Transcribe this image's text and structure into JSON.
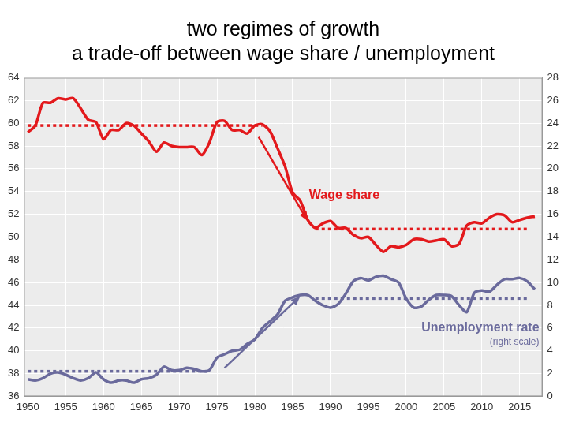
{
  "chart_data": {
    "type": "line",
    "title": [
      "two regimes of growth",
      "a trade-off between wage share / unemployment"
    ],
    "x": [
      1950,
      1951,
      1952,
      1953,
      1954,
      1955,
      1956,
      1957,
      1958,
      1959,
      1960,
      1961,
      1962,
      1963,
      1964,
      1965,
      1966,
      1967,
      1968,
      1969,
      1970,
      1971,
      1972,
      1973,
      1974,
      1975,
      1976,
      1977,
      1978,
      1979,
      1980,
      1981,
      1982,
      1983,
      1984,
      1985,
      1986,
      1987,
      1988,
      1989,
      1990,
      1991,
      1992,
      1993,
      1994,
      1995,
      1996,
      1997,
      1998,
      1999,
      2000,
      2001,
      2002,
      2003,
      2004,
      2005,
      2006,
      2007,
      2008,
      2009,
      2010,
      2011,
      2012,
      2013,
      2014,
      2015,
      2016,
      2017
    ],
    "xlim": [
      1949.5,
      2018
    ],
    "xticks": [
      1950,
      1955,
      1960,
      1965,
      1970,
      1975,
      1980,
      1985,
      1990,
      1995,
      2000,
      2005,
      2010,
      2015
    ],
    "ylim": [
      36,
      64
    ],
    "yticks": [
      36,
      38,
      40,
      42,
      44,
      46,
      48,
      50,
      52,
      54,
      56,
      58,
      60,
      62,
      64
    ],
    "y2lim": [
      0,
      28
    ],
    "y2ticks": [
      0,
      2,
      4,
      6,
      8,
      10,
      12,
      14,
      16,
      18,
      20,
      22,
      24,
      26,
      28
    ],
    "grid": true,
    "tick_labels": true,
    "series": [
      {
        "name": "Wage share",
        "color": "#e3191c",
        "line_style": "solid",
        "marker": "none",
        "values": [
          59.2,
          59.8,
          61.8,
          61.8,
          62.2,
          62.1,
          62.2,
          61.3,
          60.3,
          60.1,
          58.6,
          59.4,
          59.4,
          60.0,
          59.8,
          59.1,
          58.4,
          57.5,
          58.3,
          58.0,
          57.9,
          57.9,
          57.9,
          57.2,
          58.3,
          60.1,
          60.2,
          59.4,
          59.4,
          59.1,
          59.8,
          59.9,
          59.3,
          57.8,
          56.2,
          53.9,
          53.2,
          51.5,
          50.8,
          51.2,
          51.4,
          50.8,
          50.8,
          50.2,
          49.9,
          50.0,
          49.3,
          48.7,
          49.2,
          49.1,
          49.3,
          49.8,
          49.8,
          49.6,
          49.7,
          49.8,
          49.2,
          49.4,
          51.0,
          51.3,
          51.2,
          51.7,
          52.0,
          51.9,
          51.3,
          51.5,
          51.7,
          51.8
        ]
      },
      {
        "name": "Unemployment rate",
        "color": "#6a6a9c",
        "axis": "y2",
        "line_style": "solid",
        "marker": "none",
        "values": [
          1.5,
          1.4,
          1.6,
          2.0,
          2.1,
          1.9,
          1.6,
          1.4,
          1.6,
          2.1,
          1.5,
          1.2,
          1.4,
          1.4,
          1.2,
          1.5,
          1.6,
          1.9,
          2.6,
          2.3,
          2.3,
          2.5,
          2.4,
          2.2,
          2.3,
          3.4,
          3.7,
          4.0,
          4.1,
          4.6,
          5.0,
          6.0,
          6.6,
          7.2,
          8.4,
          8.7,
          8.9,
          8.9,
          8.4,
          8.0,
          7.8,
          8.1,
          9.0,
          10.1,
          10.4,
          10.2,
          10.5,
          10.6,
          10.3,
          10.0,
          8.6,
          7.8,
          7.9,
          8.5,
          8.9,
          8.9,
          8.8,
          8.0,
          7.4,
          9.1,
          9.3,
          9.2,
          9.8,
          10.3,
          10.3,
          10.4,
          10.1,
          9.4
        ]
      }
    ],
    "regimes": [
      {
        "series": "Wage share",
        "x": [
          1950,
          1981
        ],
        "value": 59.8,
        "line_style": "dotted"
      },
      {
        "series": "Wage share",
        "x": [
          1988,
          2016
        ],
        "value": 50.7,
        "line_style": "dotted"
      },
      {
        "series": "Unemployment rate",
        "x": [
          1950,
          1974
        ],
        "value": 2.2,
        "line_style": "dotted"
      },
      {
        "series": "Unemployment rate",
        "x": [
          1988,
          2016
        ],
        "value": 8.6,
        "line_style": "dotted"
      }
    ],
    "arrows": [
      {
        "series": "Wage share",
        "from": [
          1980.5,
          58.8
        ],
        "to": [
          1987,
          51.4
        ]
      },
      {
        "series": "Unemployment rate",
        "from": [
          1976,
          2.5
        ],
        "to": [
          1986,
          8.8
        ]
      }
    ],
    "annotations": [
      {
        "series": "Unemployment rate",
        "text": "(right scale)"
      }
    ]
  }
}
